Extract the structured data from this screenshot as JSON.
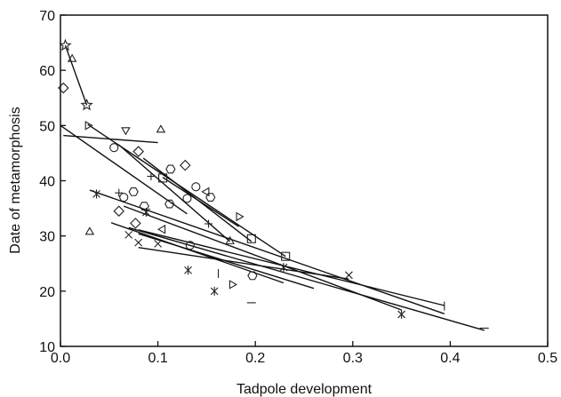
{
  "chart_data": {
    "type": "scatter",
    "title": "",
    "xlabel": "Tadpole development",
    "ylabel": "Date of metamorphosis",
    "xlim": [
      0,
      0.5
    ],
    "ylim": [
      10,
      70
    ],
    "xticks": [
      "0.0",
      "0.1",
      "0.2",
      "0.3",
      "0.4",
      "0.5"
    ],
    "yticks": [
      "10",
      "20",
      "30",
      "40",
      "50",
      "60",
      "70"
    ],
    "grid": false,
    "legend": "none",
    "points": [
      {
        "x": 0.005,
        "y": 64.5,
        "marker": "star"
      },
      {
        "x": 0.027,
        "y": 53.7,
        "marker": "star"
      },
      {
        "x": 0.012,
        "y": 62.0,
        "marker": "triangle"
      },
      {
        "x": 0.003,
        "y": 56.8,
        "marker": "diamond"
      },
      {
        "x": 0.03,
        "y": 30.7,
        "marker": "triangle"
      },
      {
        "x": 0.028,
        "y": 50.0,
        "marker": "triangle-right"
      },
      {
        "x": 0.067,
        "y": 49.2,
        "marker": "triangle-down"
      },
      {
        "x": 0.103,
        "y": 49.2,
        "marker": "triangle"
      },
      {
        "x": 0.055,
        "y": 46.0,
        "marker": "circle"
      },
      {
        "x": 0.08,
        "y": 45.3,
        "marker": "diamond"
      },
      {
        "x": 0.093,
        "y": 40.8,
        "marker": "plus"
      },
      {
        "x": 0.113,
        "y": 42.1,
        "marker": "hexagon"
      },
      {
        "x": 0.128,
        "y": 42.8,
        "marker": "diamond"
      },
      {
        "x": 0.105,
        "y": 40.5,
        "marker": "square"
      },
      {
        "x": 0.139,
        "y": 38.9,
        "marker": "circle"
      },
      {
        "x": 0.15,
        "y": 38.0,
        "marker": "triangle-left"
      },
      {
        "x": 0.154,
        "y": 37.0,
        "marker": "hexagon"
      },
      {
        "x": 0.075,
        "y": 38.0,
        "marker": "hexagon"
      },
      {
        "x": 0.06,
        "y": 37.8,
        "marker": "plus"
      },
      {
        "x": 0.065,
        "y": 37.0,
        "marker": "circle"
      },
      {
        "x": 0.112,
        "y": 35.8,
        "marker": "hexagon"
      },
      {
        "x": 0.086,
        "y": 35.4,
        "marker": "hexagon"
      },
      {
        "x": 0.13,
        "y": 36.8,
        "marker": "circle"
      },
      {
        "x": 0.183,
        "y": 33.5,
        "marker": "triangle-right"
      },
      {
        "x": 0.06,
        "y": 34.5,
        "marker": "diamond"
      },
      {
        "x": 0.088,
        "y": 34.3,
        "marker": "asterisk"
      },
      {
        "x": 0.037,
        "y": 37.6,
        "marker": "asterisk"
      },
      {
        "x": 0.077,
        "y": 32.3,
        "marker": "diamond"
      },
      {
        "x": 0.152,
        "y": 32.2,
        "marker": "plus"
      },
      {
        "x": 0.105,
        "y": 31.2,
        "marker": "triangle-left"
      },
      {
        "x": 0.07,
        "y": 30.2,
        "marker": "x"
      },
      {
        "x": 0.174,
        "y": 29.0,
        "marker": "triangle"
      },
      {
        "x": 0.196,
        "y": 29.5,
        "marker": "square"
      },
      {
        "x": 0.231,
        "y": 26.3,
        "marker": "square"
      },
      {
        "x": 0.08,
        "y": 28.8,
        "marker": "x"
      },
      {
        "x": 0.1,
        "y": 28.6,
        "marker": "x"
      },
      {
        "x": 0.133,
        "y": 28.3,
        "marker": "circle"
      },
      {
        "x": 0.229,
        "y": 24.3,
        "marker": "asterisk"
      },
      {
        "x": 0.131,
        "y": 23.8,
        "marker": "asterisk"
      },
      {
        "x": 0.158,
        "y": 20.0,
        "marker": "asterisk"
      },
      {
        "x": 0.197,
        "y": 22.8,
        "marker": "hexagon"
      },
      {
        "x": 0.162,
        "y": 23.2,
        "marker": "vbar"
      },
      {
        "x": 0.176,
        "y": 21.2,
        "marker": "triangle-right"
      },
      {
        "x": 0.296,
        "y": 22.9,
        "marker": "x"
      },
      {
        "x": 0.196,
        "y": 17.9,
        "marker": "dash"
      },
      {
        "x": 0.35,
        "y": 15.8,
        "marker": "asterisk"
      },
      {
        "x": 0.394,
        "y": 17.3,
        "marker": "vbar"
      },
      {
        "x": 0.435,
        "y": 13.3,
        "marker": "dash"
      }
    ],
    "lines": [
      {
        "x": [
          0.005,
          0.027
        ],
        "y": [
          64.5,
          53.7
        ]
      },
      {
        "x": [
          0.003,
          0.1
        ],
        "y": [
          48.2,
          46.9
        ]
      },
      {
        "x": [
          0.028,
          0.231
        ],
        "y": [
          50.2,
          26.3
        ]
      },
      {
        "x": [
          0.06,
          0.174
        ],
        "y": [
          46.5,
          29.0
        ]
      },
      {
        "x": [
          0.085,
          0.196
        ],
        "y": [
          44.1,
          29.0
        ]
      },
      {
        "x": [
          0.105,
          0.183
        ],
        "y": [
          40.6,
          31.7
        ]
      },
      {
        "x": [
          0.0,
          0.13
        ],
        "y": [
          50.0,
          34.0
        ]
      },
      {
        "x": [
          0.03,
          0.394
        ],
        "y": [
          38.3,
          15.9
        ]
      },
      {
        "x": [
          0.065,
          0.35
        ],
        "y": [
          35.4,
          16.6
        ]
      },
      {
        "x": [
          0.08,
          0.394
        ],
        "y": [
          31.1,
          17.4
        ]
      },
      {
        "x": [
          0.052,
          0.229
        ],
        "y": [
          32.4,
          21.5
        ]
      },
      {
        "x": [
          0.07,
          0.435
        ],
        "y": [
          31.5,
          12.9
        ]
      },
      {
        "x": [
          0.08,
          0.26
        ],
        "y": [
          30.4,
          20.5
        ]
      },
      {
        "x": [
          0.08,
          0.296
        ],
        "y": [
          27.9,
          22.2
        ]
      }
    ]
  }
}
